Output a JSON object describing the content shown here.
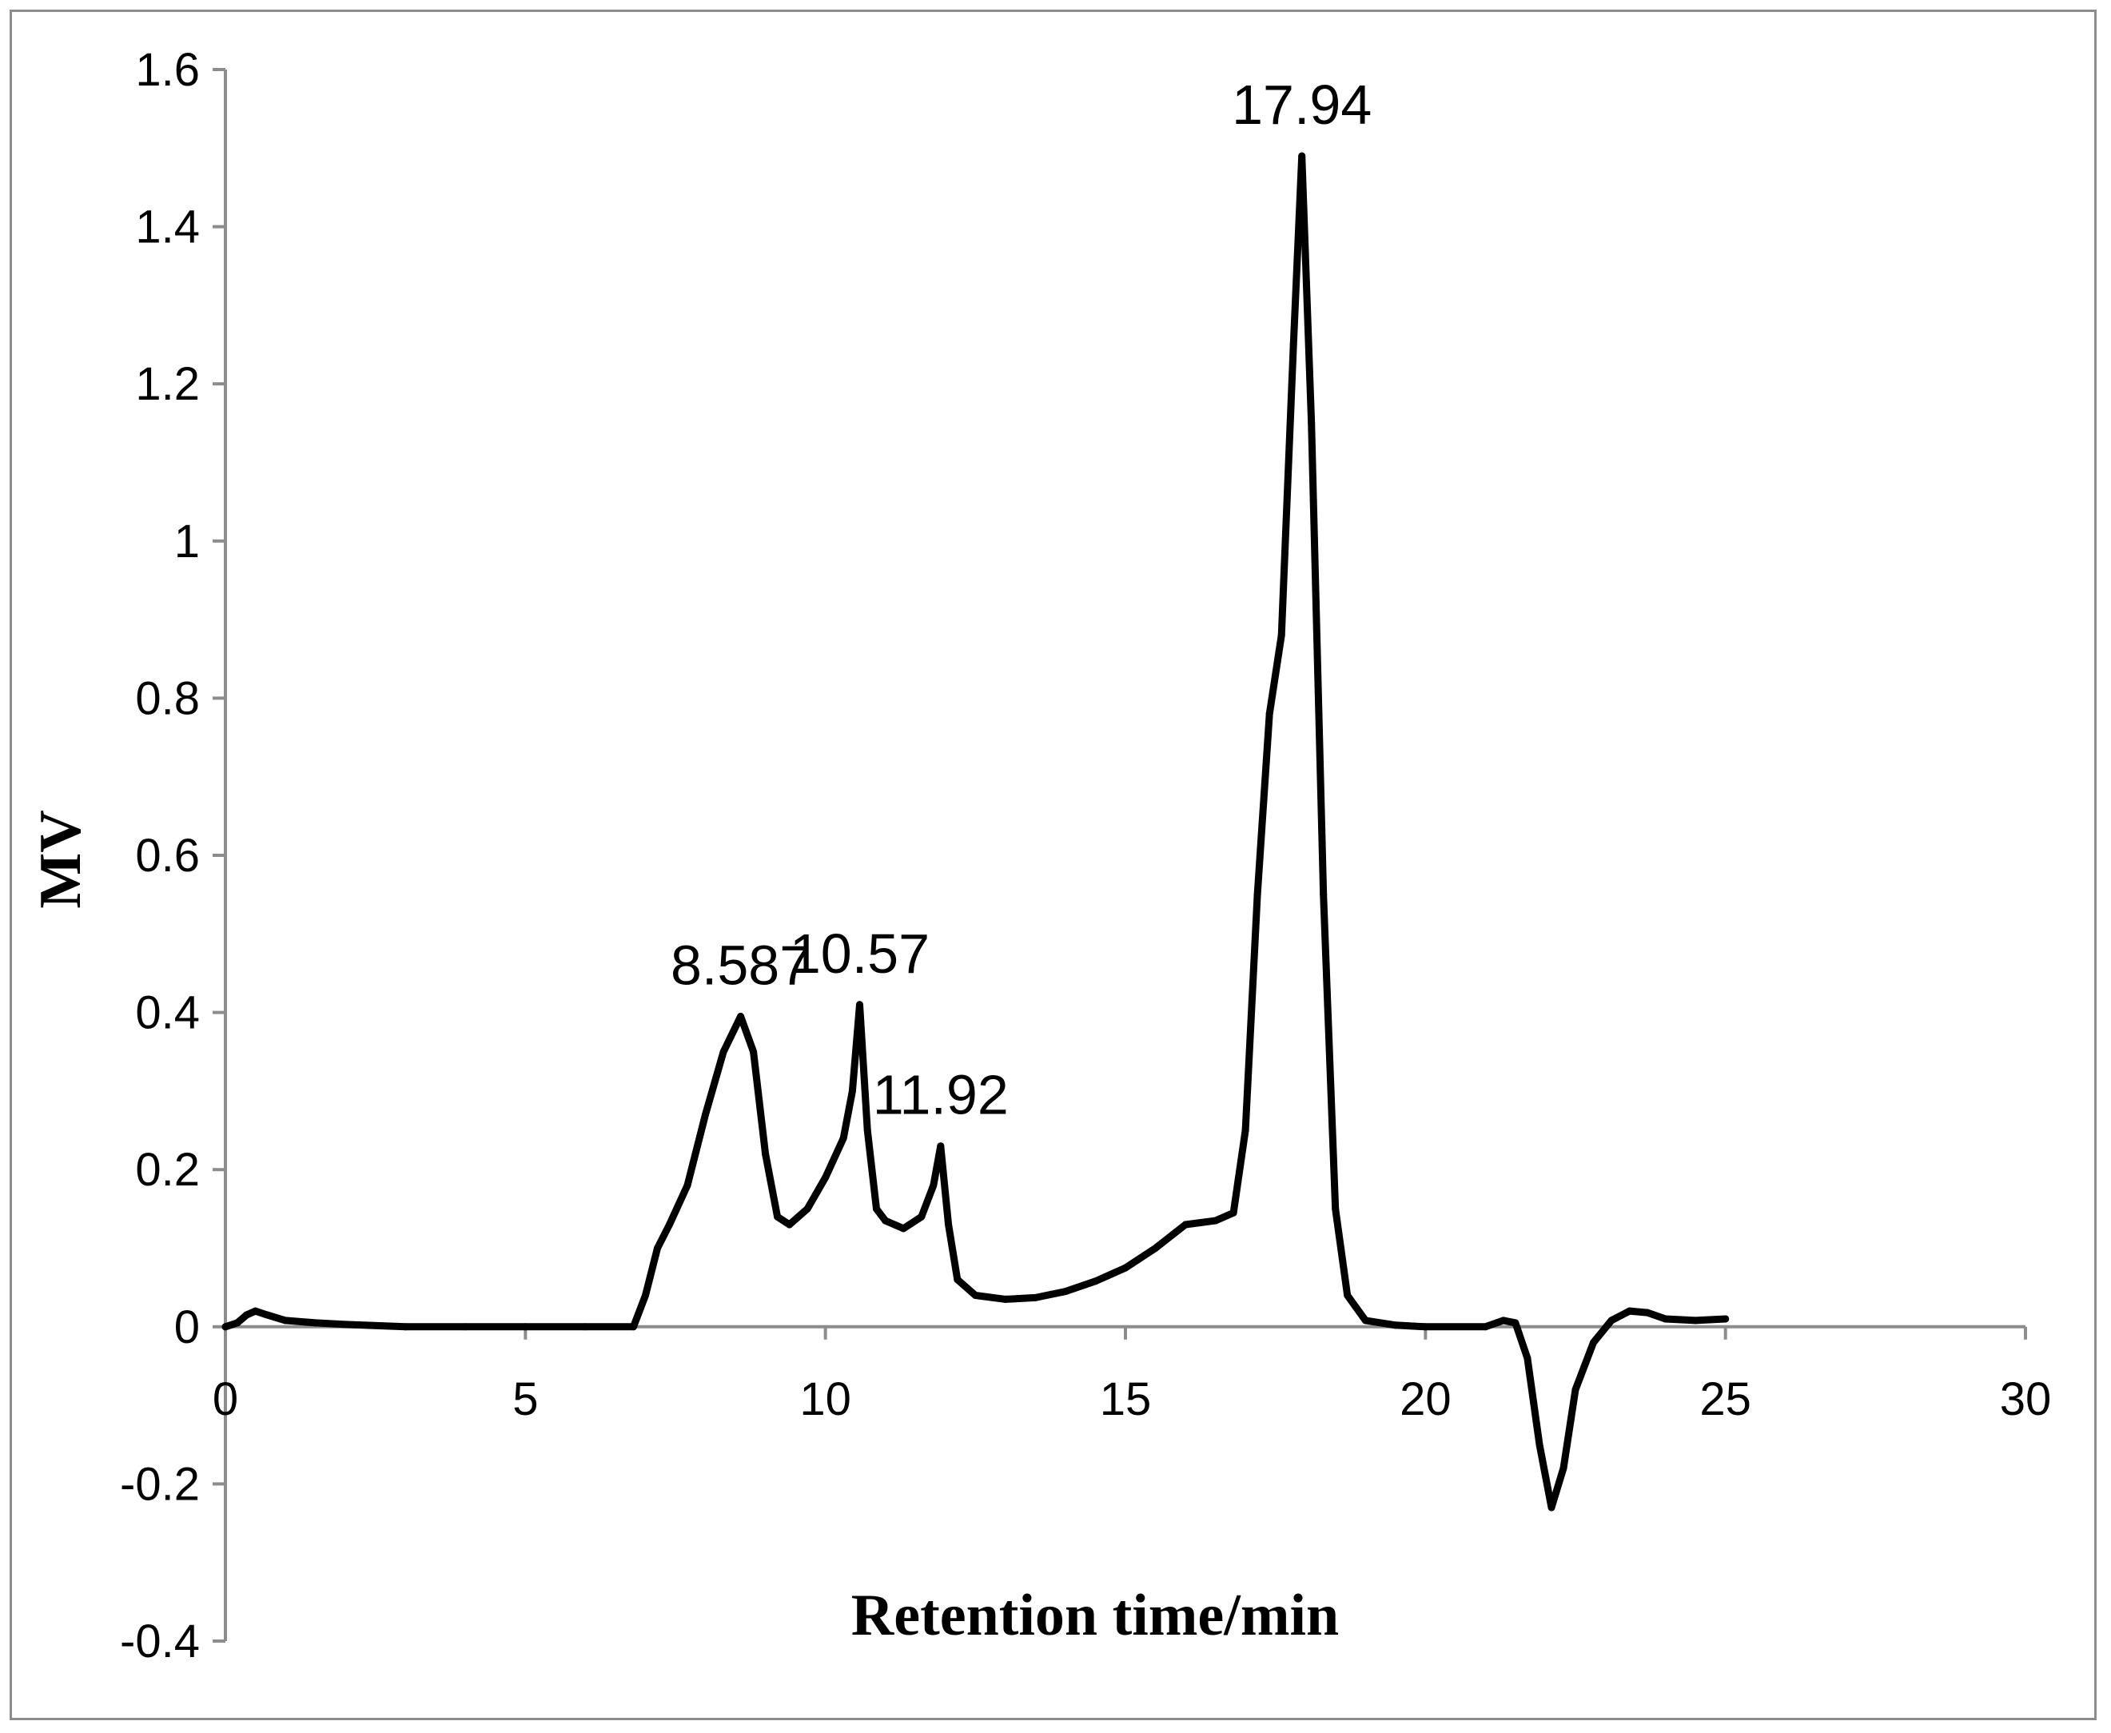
{
  "chart_data": {
    "type": "line",
    "title": "",
    "xlabel": "Retention time/min",
    "ylabel": "MV",
    "xlim": [
      0,
      30
    ],
    "ylim": [
      -0.4,
      1.6
    ],
    "x_ticks": [
      "0",
      "5",
      "10",
      "15",
      "20",
      "25",
      "30"
    ],
    "y_ticks": [
      "-0.4",
      "-0.2",
      "0",
      "0.2",
      "0.4",
      "0.6",
      "0.8",
      "1",
      "1.2",
      "1.4",
      "1.6"
    ],
    "grid": false,
    "legend": "none",
    "line_color": "#000000",
    "axis_color": "#8c8c8c",
    "annotations": [
      {
        "text": "8.587",
        "x": 8.587,
        "y": 0.395
      },
      {
        "text": "10.57",
        "x": 10.57,
        "y": 0.41
      },
      {
        "text": "11.92",
        "x": 11.92,
        "y": 0.23
      },
      {
        "text": "17.94",
        "x": 17.94,
        "y": 1.49
      }
    ],
    "series": [
      {
        "x": [
          0,
          0.2,
          0.35,
          0.5,
          0.7,
          1.0,
          1.5,
          2.0,
          3.0,
          4.0,
          5.0,
          6.0,
          6.8,
          7.0,
          7.2,
          7.4,
          7.7,
          8.0,
          8.3,
          8.587,
          8.8,
          9.0,
          9.2,
          9.4,
          9.7,
          10.0,
          10.3,
          10.45,
          10.57,
          10.7,
          10.85,
          11.0,
          11.3,
          11.6,
          11.8,
          11.92,
          12.05,
          12.2,
          12.5,
          13.0,
          13.5,
          14.0,
          14.5,
          15.0,
          15.5,
          16.0,
          16.5,
          16.8,
          17.0,
          17.2,
          17.4,
          17.6,
          17.8,
          17.94,
          18.1,
          18.3,
          18.5,
          18.7,
          19.0,
          19.5,
          20.0,
          21.0,
          21.3,
          21.5,
          21.7,
          21.9,
          22.1,
          22.3,
          22.5,
          22.8,
          23.1,
          23.4,
          23.7,
          24.0,
          24.5,
          25.0
        ],
        "y": [
          0,
          0.005,
          0.015,
          0.02,
          0.015,
          0.008,
          0.005,
          0.003,
          0,
          0,
          0,
          0,
          0,
          0.04,
          0.1,
          0.13,
          0.18,
          0.27,
          0.35,
          0.395,
          0.35,
          0.22,
          0.14,
          0.13,
          0.15,
          0.19,
          0.24,
          0.3,
          0.41,
          0.25,
          0.15,
          0.135,
          0.125,
          0.14,
          0.18,
          0.23,
          0.13,
          0.06,
          0.04,
          0.035,
          0.037,
          0.045,
          0.058,
          0.075,
          0.1,
          0.13,
          0.135,
          0.145,
          0.25,
          0.55,
          0.78,
          0.88,
          1.25,
          1.49,
          1.15,
          0.55,
          0.15,
          0.04,
          0.008,
          0.002,
          0,
          0,
          0.008,
          0.005,
          -0.04,
          -0.15,
          -0.23,
          -0.18,
          -0.08,
          -0.02,
          0.008,
          0.02,
          0.018,
          0.01,
          0.008,
          0.01
        ]
      }
    ]
  }
}
